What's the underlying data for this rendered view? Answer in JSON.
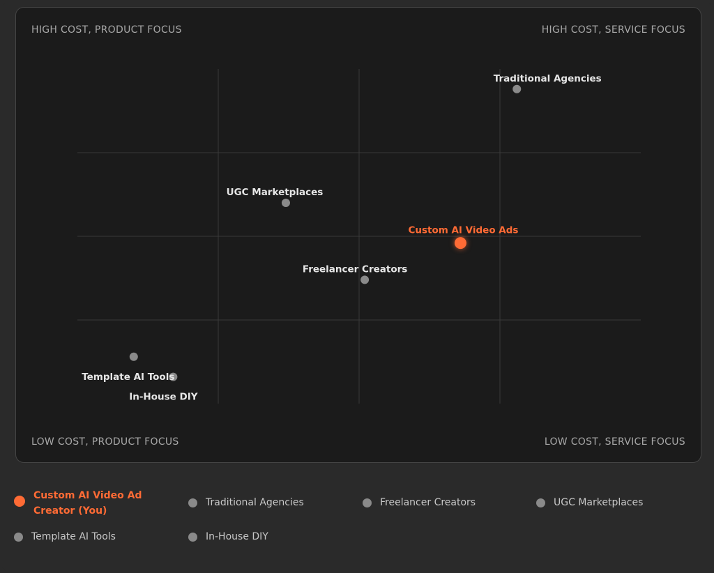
{
  "quadrants": {
    "top_left": "HIGH COST, PRODUCT FOCUS",
    "top_right": "HIGH COST, SERVICE FOCUS",
    "bottom_left": "LOW COST, PRODUCT FOCUS",
    "bottom_right": "LOW COST, SERVICE FOCUS"
  },
  "colors": {
    "highlight": "#ff6b35",
    "point": "#8a8a8a",
    "label": "#e6e6e6",
    "grid": "#3a3a3a"
  },
  "chart_data": {
    "type": "scatter",
    "title": "",
    "xlabel": "",
    "ylabel": "",
    "xlim": [
      0,
      100
    ],
    "ylim": [
      0,
      100
    ],
    "grid": true,
    "legend_position": "bottom",
    "points": [
      {
        "name": "Traditional Agencies",
        "x": 78,
        "y": 94,
        "highlight": false
      },
      {
        "name": "UGC Marketplaces",
        "x": 37,
        "y": 60,
        "highlight": false
      },
      {
        "name": "Custom AI Video Ads",
        "x": 68,
        "y": 48,
        "highlight": true
      },
      {
        "name": "Freelancer Creators",
        "x": 51,
        "y": 37,
        "highlight": false
      },
      {
        "name": "Template AI Tools",
        "x": 10,
        "y": 14,
        "highlight": false
      },
      {
        "name": "In-House DIY",
        "x": 17,
        "y": 8,
        "highlight": false
      }
    ]
  },
  "legend": [
    {
      "label": "Custom AI Video Ad Creator (You)",
      "highlight": true
    },
    {
      "label": "Traditional Agencies",
      "highlight": false
    },
    {
      "label": "Freelancer Creators",
      "highlight": false
    },
    {
      "label": "UGC Marketplaces",
      "highlight": false
    },
    {
      "label": "Template AI Tools",
      "highlight": false
    },
    {
      "label": "In-House DIY",
      "highlight": false
    }
  ]
}
